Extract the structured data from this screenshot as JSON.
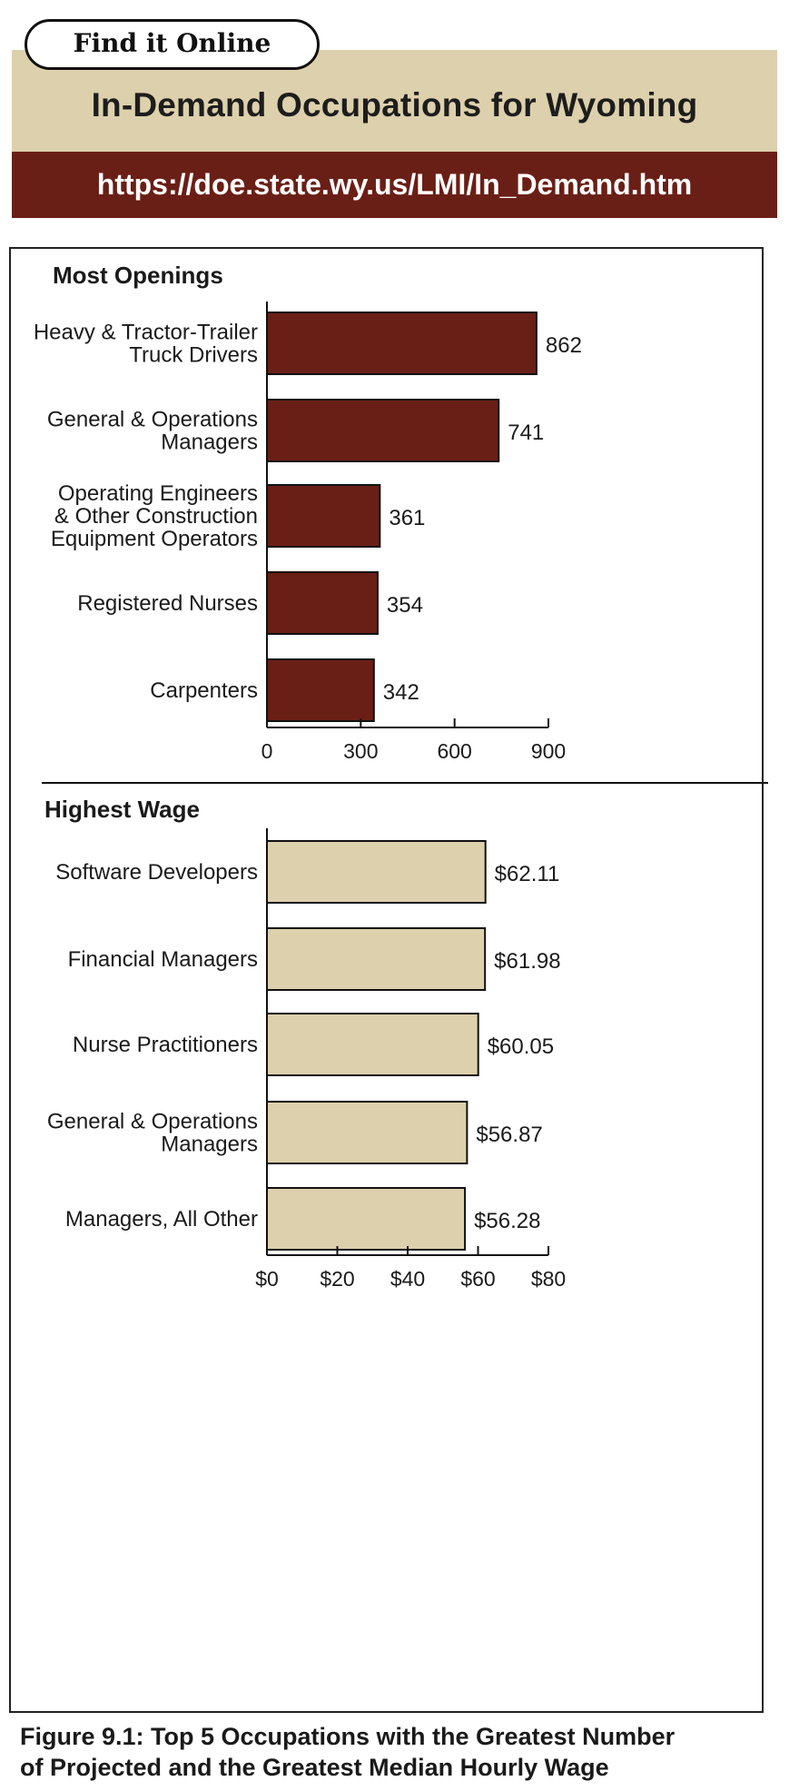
{
  "header": {
    "find_label": "Find it Online",
    "title": "In-Demand Occupations for Wyoming",
    "url": "https://doe.state.wy.us/LMI/In_Demand.htm"
  },
  "colors": {
    "title_band": "#ddd0ac",
    "url_band": "#6a1f16",
    "openings_bar": "#6a1f16",
    "wage_bar": "#ddd0ac"
  },
  "chart_data": [
    {
      "type": "bar",
      "orientation": "horizontal",
      "title": "Most Openings",
      "categories": [
        [
          "Heavy & Tractor-Trailer",
          "Truck Drivers"
        ],
        [
          "General & Operations",
          "Managers"
        ],
        [
          "Operating Engineers",
          "& Other Construction",
          "Equipment Operators"
        ],
        [
          "Registered Nurses"
        ],
        [
          "Carpenters"
        ]
      ],
      "values": [
        862,
        741,
        361,
        354,
        342
      ],
      "value_labels": [
        "862",
        "741",
        "361",
        "354",
        "342"
      ],
      "xlim": [
        0,
        900
      ],
      "ticks": [
        0,
        300,
        600,
        900
      ],
      "tick_labels": [
        "0",
        "300",
        "600",
        "900"
      ],
      "grid": false
    },
    {
      "type": "bar",
      "orientation": "horizontal",
      "title": "Highest Wage",
      "categories": [
        [
          "Software Developers"
        ],
        [
          "Financial Managers"
        ],
        [
          "Nurse Practitioners"
        ],
        [
          "General & Operations",
          "Managers"
        ],
        [
          "Managers, All Other"
        ]
      ],
      "values": [
        62.11,
        61.98,
        60.05,
        56.87,
        56.28
      ],
      "value_labels": [
        "$62.11",
        "$61.98",
        "$60.05",
        "$56.87",
        "$56.28"
      ],
      "xlim": [
        0,
        80
      ],
      "ticks": [
        0,
        20,
        40,
        60,
        80
      ],
      "tick_labels": [
        "$0",
        "$20",
        "$40",
        "$60",
        "$80"
      ],
      "grid": false
    }
  ],
  "caption": {
    "line1": "Figure 9.1: Top 5 Occupations with the Greatest Number",
    "line2": "of Projected and the Greatest Median Hourly Wage"
  }
}
